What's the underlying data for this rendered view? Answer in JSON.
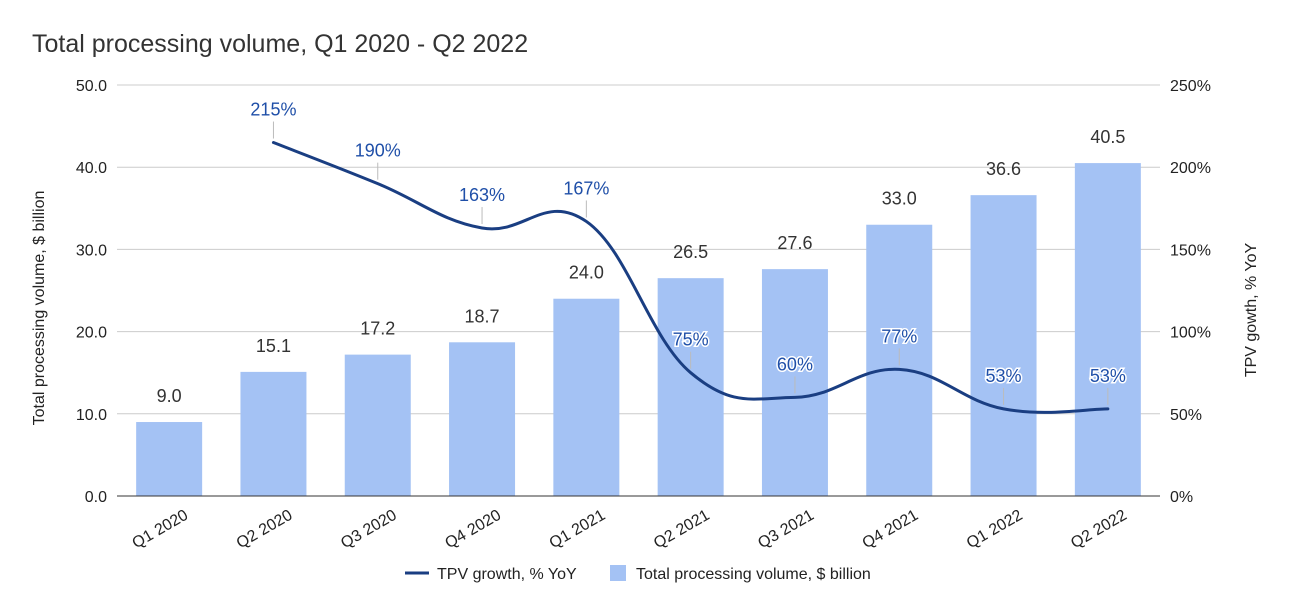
{
  "chart_data": {
    "type": "bar",
    "title": "Total processing volume, Q1 2020 - Q2 2022",
    "categories": [
      "Q1 2020",
      "Q2 2020",
      "Q3 2020",
      "Q4 2020",
      "Q1 2021",
      "Q2 2021",
      "Q3 2021",
      "Q4 2021",
      "Q1 2022",
      "Q2 2022"
    ],
    "series": [
      {
        "name": "Total processing volume, $ billion",
        "kind": "bar",
        "axis": "left",
        "values": [
          9.0,
          15.1,
          17.2,
          18.7,
          24.0,
          26.5,
          27.6,
          33.0,
          36.6,
          40.5
        ],
        "labels": [
          "9.0",
          "15.1",
          "17.2",
          "18.7",
          "24.0",
          "26.5",
          "27.6",
          "33.0",
          "36.6",
          "40.5"
        ]
      },
      {
        "name": "TPV growth, % YoY",
        "kind": "line",
        "axis": "right",
        "values": [
          null,
          215,
          190,
          163,
          167,
          75,
          60,
          77,
          53,
          53
        ],
        "labels": [
          "",
          "215%",
          "190%",
          "163%",
          "167%",
          "75%",
          "60%",
          "77%",
          "53%",
          "53%"
        ]
      }
    ],
    "ylabel_left": "Total processing volume,  $ billion",
    "ylabel_right": "TPV gowth, % YoY",
    "ylim_left": [
      0,
      50
    ],
    "ylim_right": [
      0,
      250
    ],
    "yticks_left": [
      "0.0",
      "10.0",
      "20.0",
      "30.0",
      "40.0",
      "50.0"
    ],
    "yticks_right": [
      "0%",
      "50%",
      "100%",
      "150%",
      "200%",
      "250%"
    ],
    "grid": true,
    "legend_position": "bottom-center",
    "colors": {
      "bar": "#a4c2f4",
      "line": "#1a3e82",
      "line_label": "#1f4fa8",
      "grid": "#cccccc"
    }
  }
}
